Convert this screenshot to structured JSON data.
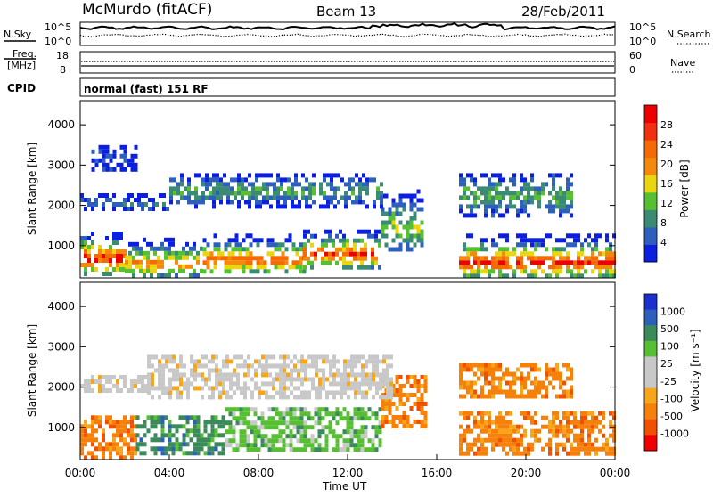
{
  "header": {
    "station": "McMurdo (fitACF)",
    "beam": "Beam 13",
    "date": "28/Feb/2011"
  },
  "noise_panel": {
    "left_label": "N.Sky",
    "right_label": "N.Search",
    "left_ticks": [
      "10^5",
      "10^0"
    ],
    "right_ticks": [
      "10^5",
      "10^0"
    ]
  },
  "freq_panel": {
    "left_label_line1": "Freq.",
    "left_label_line2": "[MHz]",
    "right_label": "Nave",
    "left_ticks": [
      "18",
      "8"
    ],
    "right_ticks": [
      "60",
      "0"
    ]
  },
  "cpid_panel": {
    "label": "CPID",
    "mode_text": "normal (fast) 151 RF"
  },
  "colors": {
    "power": [
      "#0b1fe0",
      "#2d5fbd",
      "#3a8a74",
      "#56c032",
      "#e9d611",
      "#f58a0a",
      "#f56a05",
      "#f03010",
      "#ee0000"
    ],
    "velocity": [
      "#f00000",
      "#f05000",
      "#f5800a",
      "#f7a61a",
      "#c8c8c8",
      "#c8c8c8",
      "#56c032",
      "#3a8a5a",
      "#2d5fbd",
      "#1a2fd0"
    ]
  },
  "chart_data": [
    {
      "type": "heatmap",
      "name": "power",
      "ylabel": "Slant Range [km]",
      "xlabel": "",
      "xlim_hours": [
        0,
        24
      ],
      "ylim": [
        200,
        4600
      ],
      "yticks": [
        1000,
        2000,
        3000,
        4000
      ],
      "colorbar_label": "Power [dB]",
      "colorbar_range": [
        0,
        32
      ],
      "colorbar_ticks": [
        4,
        8,
        12,
        16,
        20,
        24,
        28
      ],
      "bands": [
        {
          "start": 0.0,
          "end": 2.0,
          "lo": 300,
          "hi": 1350,
          "peak": 750,
          "max": 30
        },
        {
          "start": 2.0,
          "end": 5.5,
          "lo": 300,
          "hi": 1200,
          "peak": 620,
          "max": 24
        },
        {
          "start": 5.5,
          "end": 10.0,
          "lo": 400,
          "hi": 1300,
          "peak": 700,
          "max": 28
        },
        {
          "start": 10.0,
          "end": 13.5,
          "lo": 500,
          "hi": 1400,
          "peak": 850,
          "max": 29
        },
        {
          "start": 13.5,
          "end": 15.3,
          "lo": 900,
          "hi": 2400,
          "peak": 1500,
          "max": 16
        },
        {
          "start": 17.0,
          "end": 24.0,
          "lo": 300,
          "hi": 1300,
          "peak": 650,
          "max": 30
        },
        {
          "start": 4.0,
          "end": 13.5,
          "lo": 2000,
          "hi": 2800,
          "peak": 2400,
          "max": 12
        },
        {
          "start": 0.0,
          "end": 4.0,
          "lo": 1900,
          "hi": 2300,
          "peak": 2100,
          "max": 8
        },
        {
          "start": 0.5,
          "end": 2.5,
          "lo": 2900,
          "hi": 3500,
          "peak": 3200,
          "max": 5
        },
        {
          "start": 17.0,
          "end": 22.0,
          "lo": 1800,
          "hi": 2800,
          "peak": 2300,
          "max": 14
        }
      ]
    },
    {
      "type": "heatmap",
      "name": "velocity",
      "ylabel": "Slant Range [km]",
      "xlabel": "Time UT",
      "xlim_hours": [
        0,
        24
      ],
      "ylim": [
        200,
        4600
      ],
      "yticks": [
        1000,
        2000,
        3000,
        4000
      ],
      "xticks": [
        "00:00",
        "04:00",
        "08:00",
        "12:00",
        "16:00",
        "20:00",
        "00:00"
      ],
      "colorbar_label": "Velocity [m s⁻¹]",
      "colorbar_ticks": [
        "1000",
        "500",
        "100",
        "25",
        "-25",
        "-100",
        "-500",
        "-1000"
      ],
      "bands": [
        {
          "start": 0.0,
          "end": 2.5,
          "lo": 300,
          "hi": 1300,
          "cls": 2
        },
        {
          "start": 2.5,
          "end": 6.5,
          "lo": 400,
          "hi": 1300,
          "cls": 7
        },
        {
          "start": 6.5,
          "end": 13.5,
          "lo": 500,
          "hi": 1500,
          "cls": 6
        },
        {
          "start": 13.5,
          "end": 15.5,
          "lo": 1000,
          "hi": 2300,
          "cls": 2
        },
        {
          "start": 17.0,
          "end": 24.0,
          "lo": 300,
          "hi": 1400,
          "cls": 2
        },
        {
          "start": 3.0,
          "end": 14.0,
          "lo": 1800,
          "hi": 2800,
          "cls": 4
        },
        {
          "start": 17.0,
          "end": 22.0,
          "lo": 1800,
          "hi": 2600,
          "cls": 2
        },
        {
          "start": 0.0,
          "end": 3.0,
          "lo": 1900,
          "hi": 2300,
          "cls": 4
        }
      ]
    }
  ]
}
